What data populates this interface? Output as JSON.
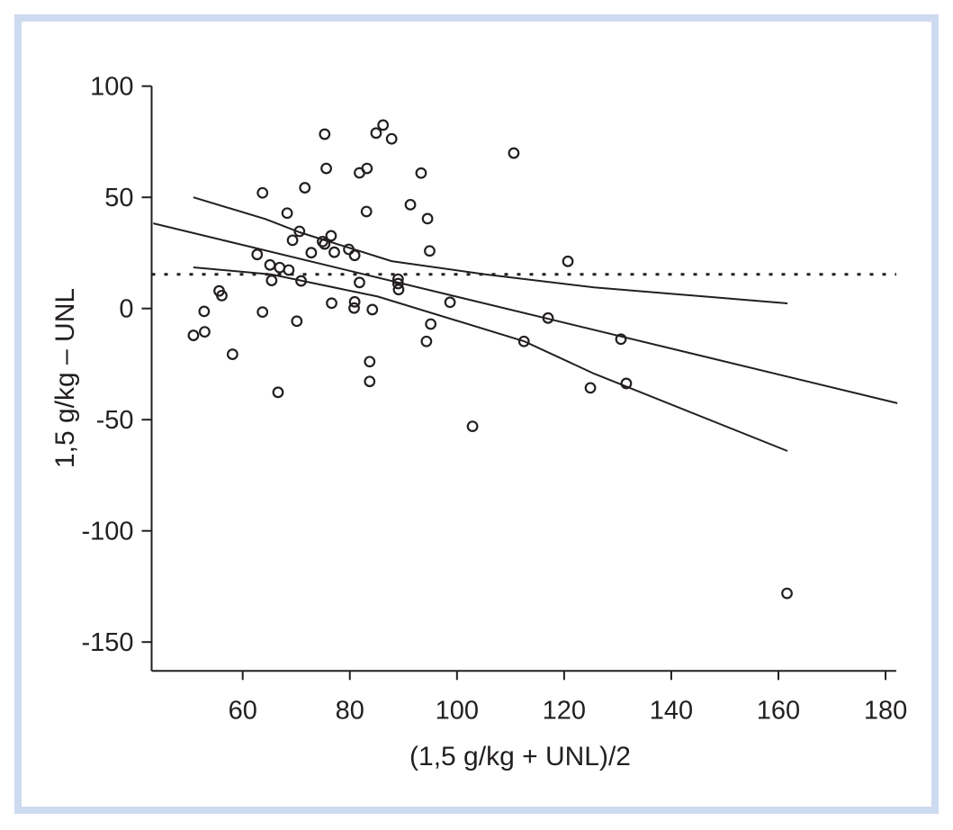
{
  "chart_data": {
    "type": "scatter",
    "title": "",
    "xlabel": "(1,5 g/kg + UNL)/2",
    "ylabel": "1,5 g/kg – UNL",
    "xlim": [
      43,
      182
    ],
    "ylim": [
      -163,
      100
    ],
    "xticks": [
      60,
      80,
      100,
      120,
      140,
      160,
      180
    ],
    "yticks": [
      100,
      50,
      0,
      -50,
      -100,
      -150
    ],
    "grid": false,
    "legend": "none",
    "points": [
      [
        75.3,
        78.4
      ],
      [
        86.2,
        82.5
      ],
      [
        84.9,
        78.9
      ],
      [
        87.8,
        76.3
      ],
      [
        75.6,
        63.0
      ],
      [
        83.2,
        63.0
      ],
      [
        81.8,
        61.0
      ],
      [
        71.6,
        54.3
      ],
      [
        63.7,
        52.0
      ],
      [
        68.3,
        42.9
      ],
      [
        83.1,
        43.6
      ],
      [
        70.6,
        34.7
      ],
      [
        69.3,
        30.7
      ],
      [
        76.5,
        32.7
      ],
      [
        74.9,
        30.1
      ],
      [
        75.3,
        29.0
      ],
      [
        62.7,
        24.3
      ],
      [
        72.8,
        25.1
      ],
      [
        77.1,
        25.3
      ],
      [
        79.8,
        26.6
      ],
      [
        80.9,
        23.9
      ],
      [
        65.1,
        19.6
      ],
      [
        66.9,
        18.4
      ],
      [
        68.6,
        17.3
      ],
      [
        65.4,
        12.6
      ],
      [
        70.9,
        12.4
      ],
      [
        81.8,
        11.7
      ],
      [
        55.6,
        7.9
      ],
      [
        56.1,
        5.8
      ],
      [
        52.8,
        -1.3
      ],
      [
        63.7,
        -1.6
      ],
      [
        70.1,
        -5.7
      ],
      [
        76.6,
        2.4
      ],
      [
        80.9,
        3.0
      ],
      [
        80.8,
        0.2
      ],
      [
        84.2,
        -0.5
      ],
      [
        50.8,
        -12.1
      ],
      [
        52.9,
        -10.5
      ],
      [
        58.1,
        -20.6
      ],
      [
        83.7,
        -23.9
      ],
      [
        83.7,
        -32.8
      ],
      [
        66.6,
        -37.7
      ],
      [
        110.6,
        69.9
      ],
      [
        93.3,
        60.9
      ],
      [
        91.3,
        46.7
      ],
      [
        94.5,
        40.4
      ],
      [
        94.9,
        25.9
      ],
      [
        120.7,
        21.2
      ],
      [
        89.0,
        13.2
      ],
      [
        89.0,
        11.2
      ],
      [
        89.1,
        8.5
      ],
      [
        98.7,
        2.8
      ],
      [
        95.1,
        -7.0
      ],
      [
        94.3,
        -14.8
      ],
      [
        117.0,
        -4.3
      ],
      [
        112.5,
        -14.8
      ],
      [
        124.9,
        -35.7
      ],
      [
        102.9,
        -53.0
      ],
      [
        130.6,
        -13.8
      ],
      [
        131.6,
        -33.7
      ],
      [
        161.6,
        -128.1
      ]
    ],
    "lines": [
      {
        "name": "regression",
        "style": "solid",
        "points": [
          [
            43.3,
            38.3
          ],
          [
            182.2,
            -42.6
          ]
        ]
      },
      {
        "name": "upper-limit",
        "style": "solid",
        "points": [
          [
            50.8,
            50.0
          ],
          [
            64.3,
            40.2
          ],
          [
            70.6,
            34.3
          ],
          [
            87.8,
            21.3
          ],
          [
            105.4,
            15.3
          ],
          [
            125.6,
            9.5
          ],
          [
            161.7,
            2.3
          ]
        ]
      },
      {
        "name": "lower-limit",
        "style": "solid",
        "points": [
          [
            50.8,
            18.5
          ],
          [
            65.4,
            15.3
          ],
          [
            85.2,
            5.4
          ],
          [
            112.5,
            -14.7
          ],
          [
            125.6,
            -29.3
          ],
          [
            161.7,
            -64.1
          ]
        ]
      },
      {
        "name": "mean-bias",
        "style": "dotted",
        "points": [
          [
            43.0,
            15.4
          ],
          [
            182.0,
            15.4
          ]
        ]
      }
    ]
  }
}
